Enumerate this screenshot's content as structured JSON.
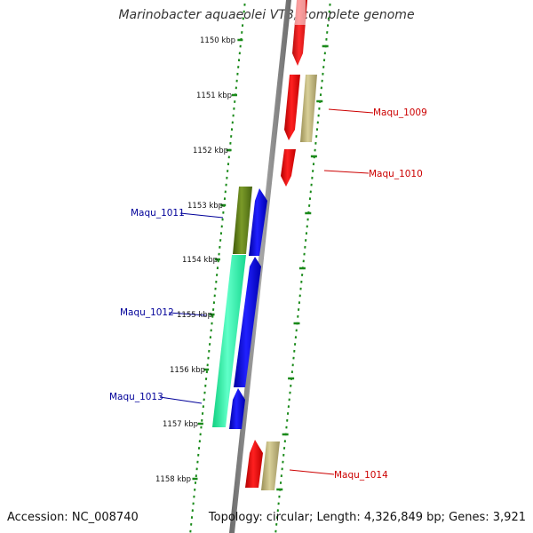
{
  "title": "Marinobacter aquaeolei VT8, complete genome",
  "footer": {
    "accession": "Accession: NC_008740",
    "topology": "Topology: circular; Length: 4,326,849 bp; Genes: 3,921"
  },
  "ticks": [
    "1150 kbp",
    "1151 kbp",
    "1152 kbp",
    "1153 kbp",
    "1154 kbp",
    "1155 kbp",
    "1156 kbp",
    "1157 kbp",
    "1158 kbp"
  ],
  "gene_labels": [
    {
      "text": "Maqu_1009",
      "strand": "forward"
    },
    {
      "text": "Maqu_1010",
      "strand": "forward"
    },
    {
      "text": "Maqu_1011",
      "strand": "reverse"
    },
    {
      "text": "Maqu_1012",
      "strand": "reverse"
    },
    {
      "text": "Maqu_1013",
      "strand": "reverse"
    },
    {
      "text": "Maqu_1014",
      "strand": "forward"
    }
  ],
  "colors": {
    "backbone": "#808080",
    "cds_red": "#ff0000",
    "cds_blue": "#0000ff",
    "gene_tan": "#b8ad70",
    "gene_olive": "#5a7a10",
    "gene_cyan": "#20f0a0",
    "dots": "#1a8a1a",
    "forward_label": "#cc0000",
    "reverse_label": "#000099"
  }
}
